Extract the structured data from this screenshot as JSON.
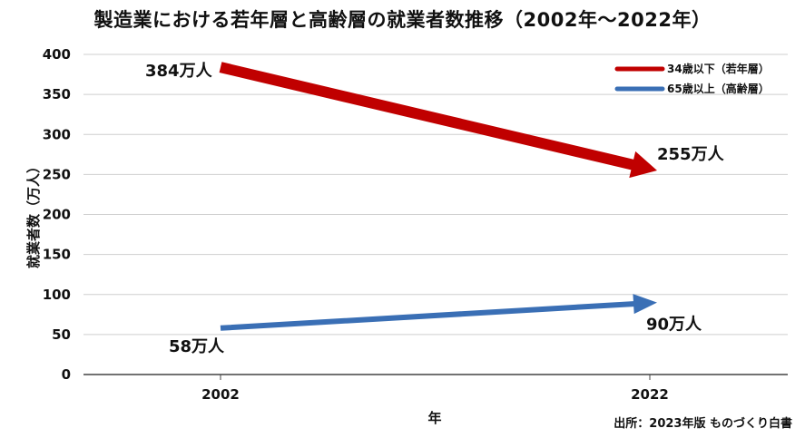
{
  "chart_data": {
    "type": "line",
    "title": "製造業における若年層と高齢層の就業者数推移（2002年〜2022年）",
    "xlabel": "年",
    "ylabel": "就業者数（万人）",
    "categories": [
      "2002",
      "2022"
    ],
    "ylim": [
      0,
      400
    ],
    "yticks": [
      0,
      50,
      100,
      150,
      200,
      250,
      300,
      350,
      400
    ],
    "grid": true,
    "legend_position": "top-right",
    "series": [
      {
        "name": "34歳以下（若年層）",
        "values": [
          384,
          255
        ],
        "labels": [
          "384万人",
          "255万人"
        ],
        "color": "#c00000"
      },
      {
        "name": "65歳以上（高齢層）",
        "values": [
          58,
          90
        ],
        "labels": [
          "58万人",
          "90万人"
        ],
        "color": "#3a6fb5"
      }
    ],
    "source": "出所：2023年版 ものづくり白書"
  }
}
